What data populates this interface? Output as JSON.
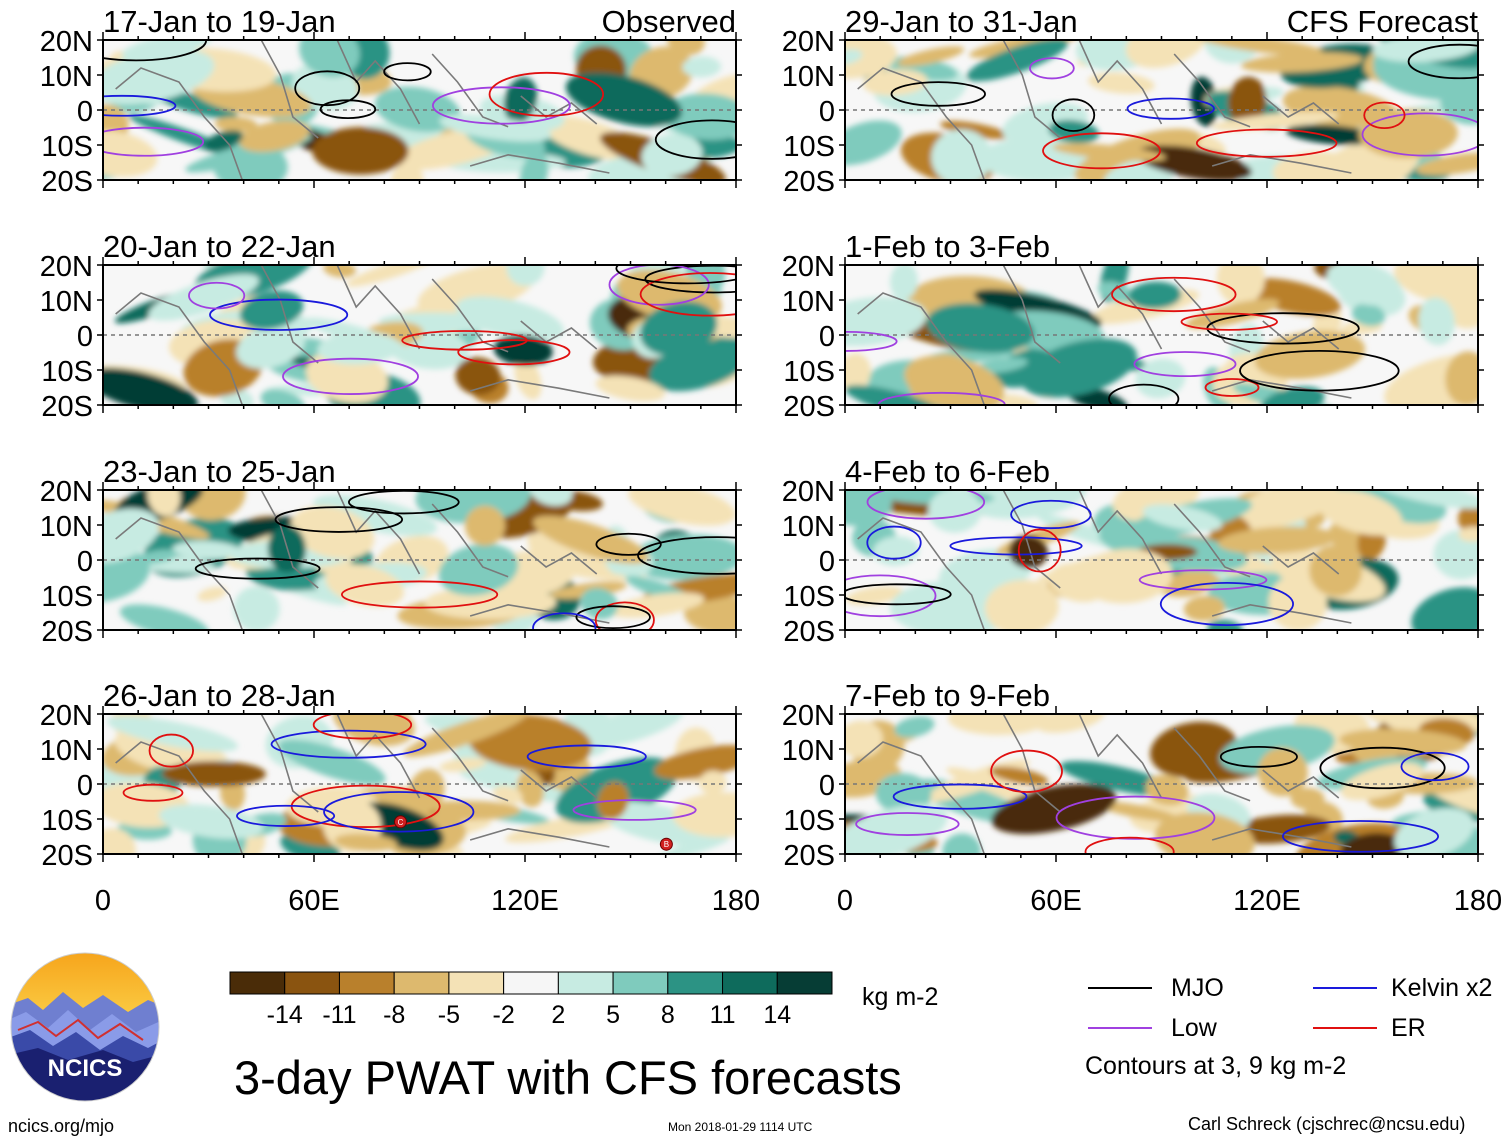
{
  "title": "3-day PWAT with CFS forecasts",
  "panels": [
    {
      "label": "17-Jan to 19-Jan",
      "tag": "Observed"
    },
    {
      "label": "29-Jan to 31-Jan",
      "tag": "CFS Forecast"
    },
    {
      "label": "20-Jan to 22-Jan",
      "tag": ""
    },
    {
      "label": "1-Feb to 3-Feb",
      "tag": ""
    },
    {
      "label": "23-Jan to 25-Jan",
      "tag": ""
    },
    {
      "label": "4-Feb to 6-Feb",
      "tag": ""
    },
    {
      "label": "26-Jan to 28-Jan",
      "tag": ""
    },
    {
      "label": "7-Feb to 9-Feb",
      "tag": ""
    }
  ],
  "chart_data": {
    "type": "heatmap",
    "title": "3-day PWAT with CFS forecasts",
    "variable": "precipitable water anomaly",
    "units": "kg m-2",
    "x_ticks": [
      "0",
      "60E",
      "120E",
      "180"
    ],
    "y_ticks": [
      "20N",
      "10N",
      "0",
      "10S",
      "20S"
    ],
    "xlim": [
      0,
      180
    ],
    "ylim": [
      -20,
      20
    ],
    "colorbar": {
      "levels": [
        "-14",
        "-11",
        "-8",
        "-5",
        "-2",
        "2",
        "5",
        "8",
        "11",
        "14"
      ],
      "colors": [
        "#4a2c08",
        "#8a5410",
        "#b9802c",
        "#ddb96e",
        "#f4e2b6",
        "#f6f6f6",
        "#c7ebe2",
        "#7fcbbd",
        "#2c9384",
        "#0e6b5c",
        "#063d35"
      ]
    },
    "contours": {
      "legend": [
        {
          "name": "MJO",
          "color": "#000000"
        },
        {
          "name": "Kelvin x2",
          "color": "#1a1adc"
        },
        {
          "name": "Low",
          "color": "#a040e0"
        },
        {
          "name": "ER",
          "color": "#e01010"
        }
      ],
      "note": "Contours at 3, 9 kg m-2"
    },
    "storm_markers": [
      "C",
      "B"
    ]
  },
  "footer": {
    "left": "ncics.org/mjo",
    "center": "Mon 2018-01-29 1114 UTC",
    "right": "Carl Schreck (cjschrec@ncsu.edu)"
  },
  "logo_text": "NCICS"
}
